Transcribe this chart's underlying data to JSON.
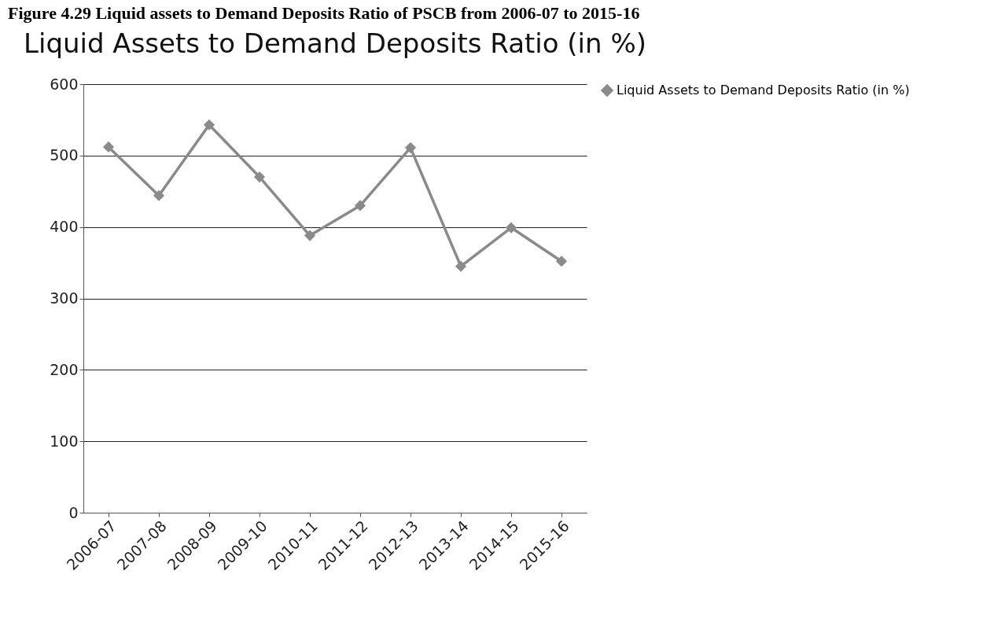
{
  "chart_data": {
    "type": "line",
    "title": "Liquid Assets to Demand Deposits Ratio (in %)",
    "annotations": [
      "Figure 4.29 Liquid assets to Demand Deposits Ratio of PSCB from 2006-07 to 2015-16"
    ],
    "categories": [
      "2006-07",
      "2007-08",
      "2008-09",
      "2009-10",
      "2010-11",
      "2011-12",
      "2012-13",
      "2013-14",
      "2014-15",
      "2015-16"
    ],
    "series": [
      {
        "name": "Liquid Assets to Demand Deposits Ratio (in %)",
        "color": "#8a8a8a",
        "values": [
          512,
          444,
          543,
          470,
          388,
          430,
          511,
          345,
          399,
          352
        ]
      }
    ],
    "ylim": [
      0,
      600
    ],
    "yticks": [
      0,
      100,
      200,
      300,
      400,
      500,
      600
    ],
    "grid": "y",
    "legend": "right",
    "marker": "diamond",
    "line_style": "solid"
  }
}
